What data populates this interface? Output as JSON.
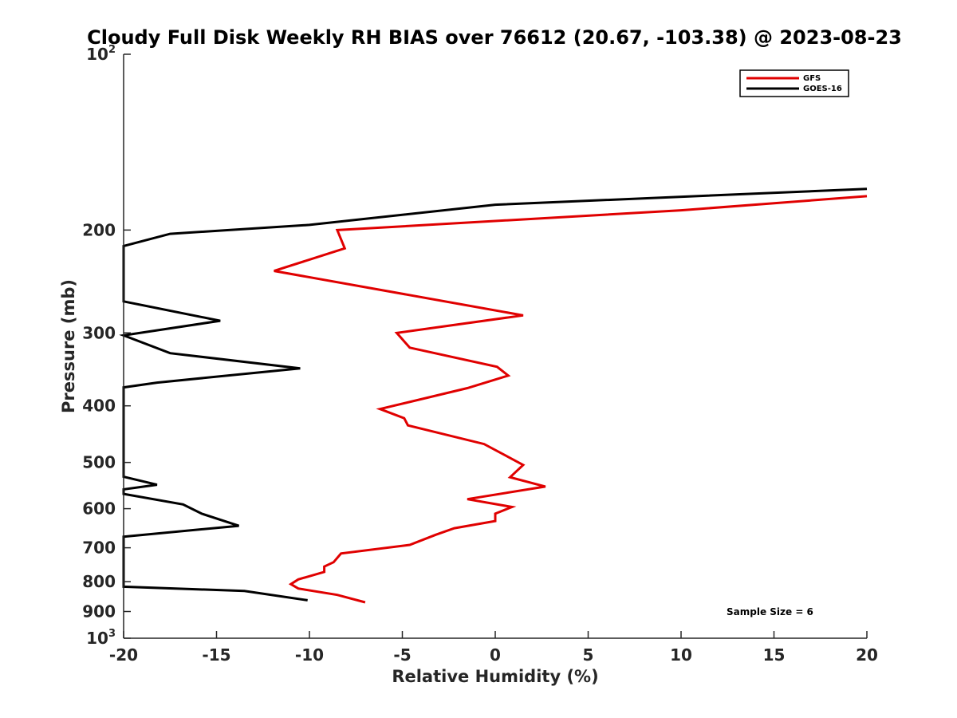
{
  "chart_data": {
    "type": "line",
    "title": "Cloudy Full Disk Weekly RH BIAS over 76612 (20.67, -103.38) @ 2023-08-23",
    "xlabel": "Relative Humidity (%)",
    "ylabel": "Pressure (mb)",
    "xlim": [
      -20,
      20
    ],
    "ylim": [
      100,
      1000
    ],
    "y_scale": "log",
    "y_reversed": true,
    "grid": false,
    "legend_position": "top-right",
    "x_ticks": [
      -20,
      -15,
      -10,
      -5,
      0,
      5,
      10,
      15,
      20
    ],
    "y_ticks": [
      {
        "value": 100,
        "base": "10",
        "exp": "2"
      },
      {
        "value": 200,
        "label": "200"
      },
      {
        "value": 300,
        "label": "300"
      },
      {
        "value": 400,
        "label": "400"
      },
      {
        "value": 500,
        "label": "500"
      },
      {
        "value": 600,
        "label": "600"
      },
      {
        "value": 700,
        "label": "700"
      },
      {
        "value": 800,
        "label": "800"
      },
      {
        "value": 900,
        "label": "900"
      },
      {
        "value": 1000,
        "base": "10",
        "exp": "3"
      }
    ],
    "annotation": "Sample Size = 6",
    "series": [
      {
        "name": "GFS",
        "color": "#e00000",
        "points": [
          [
            20,
            175
          ],
          [
            10,
            185
          ],
          [
            -8.5,
            200
          ],
          [
            -8.1,
            215
          ],
          [
            -11.9,
            235
          ],
          [
            1.5,
            280
          ],
          [
            -5.3,
            300
          ],
          [
            -4.6,
            318
          ],
          [
            0.1,
            343
          ],
          [
            0.7,
            355
          ],
          [
            -1.5,
            373
          ],
          [
            -6.2,
            405
          ],
          [
            -4.9,
            420
          ],
          [
            -4.7,
            432
          ],
          [
            -0.6,
            465
          ],
          [
            1.5,
            505
          ],
          [
            0.8,
            530
          ],
          [
            2.7,
            550
          ],
          [
            -1.5,
            578
          ],
          [
            0.9,
            596
          ],
          [
            0.0,
            612
          ],
          [
            0.0,
            630
          ],
          [
            -2.2,
            648
          ],
          [
            -3.2,
            665
          ],
          [
            -4.6,
            692
          ],
          [
            -8.3,
            716
          ],
          [
            -8.7,
            741
          ],
          [
            -9.2,
            754
          ],
          [
            -9.2,
            770
          ],
          [
            -10.6,
            793
          ],
          [
            -11.0,
            808
          ],
          [
            -10.6,
            822
          ],
          [
            -8.5,
            843
          ],
          [
            -7.0,
            868
          ]
        ]
      },
      {
        "name": "GOES-16",
        "color": "#000000",
        "points": [
          [
            20,
            170
          ],
          [
            0,
            181
          ],
          [
            -10,
            196
          ],
          [
            -17.5,
            203
          ],
          [
            -20,
            213
          ],
          [
            -20,
            265
          ],
          [
            -14.8,
            286
          ],
          [
            -20,
            303
          ],
          [
            -17.5,
            325
          ],
          [
            -10.5,
            345
          ],
          [
            -18.2,
            365
          ],
          [
            -20,
            372
          ],
          [
            -20,
            529
          ],
          [
            -18.2,
            546
          ],
          [
            -20,
            556
          ],
          [
            -20,
            566
          ],
          [
            -16.8,
            590
          ],
          [
            -15.8,
            612
          ],
          [
            -13.8,
            642
          ],
          [
            -20,
            670
          ],
          [
            -20,
            816
          ],
          [
            -13.5,
            830
          ],
          [
            -10.1,
            861
          ]
        ]
      }
    ]
  }
}
